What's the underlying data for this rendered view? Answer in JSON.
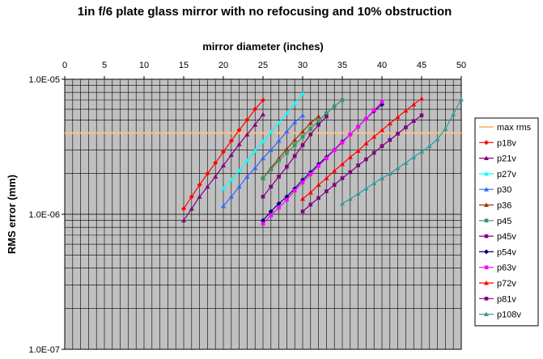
{
  "chart_data": {
    "type": "line",
    "title": "1in f/6 plate glass mirror with no refocusing and 10% obstruction",
    "xlabel": "mirror diameter (inches)",
    "ylabel": "RMS error (mm)",
    "x_axis_position": "top",
    "xlim": [
      0,
      50
    ],
    "x_ticks": [
      0,
      5,
      10,
      15,
      20,
      25,
      30,
      35,
      40,
      45,
      50
    ],
    "x_tick_labels": [
      "0",
      "5",
      "10",
      "15",
      "20",
      "25",
      "30",
      "35",
      "40",
      "45",
      "50"
    ],
    "ylim": [
      1e-07,
      1e-05
    ],
    "y_scale": "log",
    "y_ticks": [
      1e-05,
      1e-06,
      1e-07
    ],
    "y_tick_labels": [
      "1.0E-05",
      "1.0E-06",
      "1.0E-07"
    ],
    "grid": true,
    "plot_background": "#c0c0c0",
    "legend_position": "right",
    "series": [
      {
        "name": "max rms",
        "color": "#ffc080",
        "marker": "none",
        "x": [
          0,
          50
        ],
        "y": [
          4e-06,
          4e-06
        ]
      },
      {
        "name": "p18v",
        "color": "#ff0000",
        "marker": "diamond",
        "x": [
          15,
          16,
          17,
          18,
          19,
          20,
          21,
          22,
          23,
          24,
          25
        ],
        "y": [
          1.1e-06,
          1.35e-06,
          1.65e-06,
          2e-06,
          2.4e-06,
          2.9e-06,
          3.5e-06,
          4.2e-06,
          5e-06,
          6e-06,
          7e-06
        ]
      },
      {
        "name": "p21v",
        "color": "#800080",
        "marker": "triangle",
        "x": [
          15,
          16,
          17,
          18,
          19,
          20,
          21,
          22,
          23,
          24,
          25
        ],
        "y": [
          9e-07,
          1.1e-06,
          1.35e-06,
          1.6e-06,
          1.9e-06,
          2.3e-06,
          2.75e-06,
          3.3e-06,
          3.9e-06,
          4.6e-06,
          5.5e-06
        ]
      },
      {
        "name": "p27v",
        "color": "#00ffff",
        "marker": "triangle",
        "x": [
          20,
          21,
          22,
          23,
          24,
          25,
          26,
          27,
          28,
          29,
          30
        ],
        "y": [
          1.55e-06,
          1.8e-06,
          2.1e-06,
          2.5e-06,
          2.95e-06,
          3.45e-06,
          4.05e-06,
          4.75e-06,
          5.6e-06,
          6.6e-06,
          7.8e-06
        ]
      },
      {
        "name": "p30",
        "color": "#3366ff",
        "marker": "triangle",
        "x": [
          20,
          21,
          22,
          23,
          24,
          25,
          26,
          27,
          28,
          29,
          30
        ],
        "y": [
          1.15e-06,
          1.35e-06,
          1.6e-06,
          1.9e-06,
          2.2e-06,
          2.6e-06,
          3e-06,
          3.5e-06,
          4.1e-06,
          4.8e-06,
          5.4e-06
        ]
      },
      {
        "name": "p36",
        "color": "#993300",
        "marker": "triangle",
        "x": [
          25,
          26,
          27,
          28,
          29,
          30,
          31,
          32
        ],
        "y": [
          1.85e-06,
          2.2e-06,
          2.6e-06,
          3.05e-06,
          3.55e-06,
          4.1e-06,
          4.75e-06,
          5.3e-06
        ]
      },
      {
        "name": "p45",
        "color": "#339966",
        "marker": "square",
        "x": [
          25,
          26,
          27,
          28,
          29,
          30,
          31,
          32,
          33,
          34,
          35
        ],
        "y": [
          1.85e-06,
          2.15e-06,
          2.5e-06,
          2.85e-06,
          3.25e-06,
          3.75e-06,
          4.3e-06,
          4.9e-06,
          5.6e-06,
          6.3e-06,
          7e-06
        ]
      },
      {
        "name": "p45v",
        "color": "#800080",
        "marker": "square",
        "x": [
          25,
          26,
          27,
          28,
          29,
          30,
          31,
          32,
          33
        ],
        "y": [
          1.35e-06,
          1.6e-06,
          1.9e-06,
          2.25e-06,
          2.7e-06,
          3.25e-06,
          3.9e-06,
          4.6e-06,
          5.3e-06
        ]
      },
      {
        "name": "p54v",
        "color": "#000080",
        "marker": "diamond",
        "x": [
          25,
          26,
          27,
          28,
          29,
          30,
          31,
          32,
          33,
          34,
          35,
          36,
          37,
          38,
          39,
          40
        ],
        "y": [
          9e-07,
          1.05e-06,
          1.2e-06,
          1.35e-06,
          1.55e-06,
          1.8e-06,
          2.05e-06,
          2.35e-06,
          2.65e-06,
          3e-06,
          3.45e-06,
          3.9e-06,
          4.45e-06,
          5.1e-06,
          5.8e-06,
          6.5e-06
        ]
      },
      {
        "name": "p63v",
        "color": "#ff00ff",
        "marker": "square",
        "x": [
          25,
          26,
          27,
          28,
          29,
          30,
          31,
          32,
          33,
          34,
          35,
          36,
          37,
          38,
          39,
          40
        ],
        "y": [
          8.5e-07,
          9.8e-07,
          1.12e-06,
          1.28e-06,
          1.5e-06,
          1.72e-06,
          1.98e-06,
          2.28e-06,
          2.6e-06,
          2.98e-06,
          3.4e-06,
          3.9e-06,
          4.45e-06,
          5.1e-06,
          5.9e-06,
          6.8e-06
        ]
      },
      {
        "name": "p72v",
        "color": "#ff0000",
        "marker": "triangle",
        "x": [
          30,
          31,
          32,
          33,
          34,
          35,
          36,
          37,
          38,
          39,
          40,
          41,
          42,
          43,
          44,
          45
        ],
        "y": [
          1.3e-06,
          1.45e-06,
          1.65e-06,
          1.85e-06,
          2.1e-06,
          2.35e-06,
          2.65e-06,
          2.95e-06,
          3.35e-06,
          3.75e-06,
          4.2e-06,
          4.7e-06,
          5.25e-06,
          5.85e-06,
          6.5e-06,
          7.2e-06
        ]
      },
      {
        "name": "p81v",
        "color": "#800080",
        "marker": "square",
        "x": [
          30,
          31,
          32,
          33,
          34,
          35,
          36,
          37,
          38,
          39,
          40,
          41,
          42,
          43,
          44,
          45
        ],
        "y": [
          1.05e-06,
          1.18e-06,
          1.32e-06,
          1.48e-06,
          1.65e-06,
          1.85e-06,
          2.05e-06,
          2.3e-06,
          2.55e-06,
          2.85e-06,
          3.2e-06,
          3.55e-06,
          3.95e-06,
          4.4e-06,
          4.9e-06,
          5.4e-06
        ]
      },
      {
        "name": "p108v",
        "color": "#339999",
        "marker": "triangle",
        "x": [
          35,
          36,
          37,
          38,
          39,
          40,
          41,
          42,
          43,
          44,
          45,
          46,
          47,
          48,
          49,
          50
        ],
        "y": [
          1.2e-06,
          1.3e-06,
          1.42e-06,
          1.55e-06,
          1.7e-06,
          1.85e-06,
          2e-06,
          2.2e-06,
          2.4e-06,
          2.65e-06,
          2.9e-06,
          3.2e-06,
          3.6e-06,
          4.3e-06,
          5.5e-06,
          7.1e-06
        ]
      }
    ]
  }
}
